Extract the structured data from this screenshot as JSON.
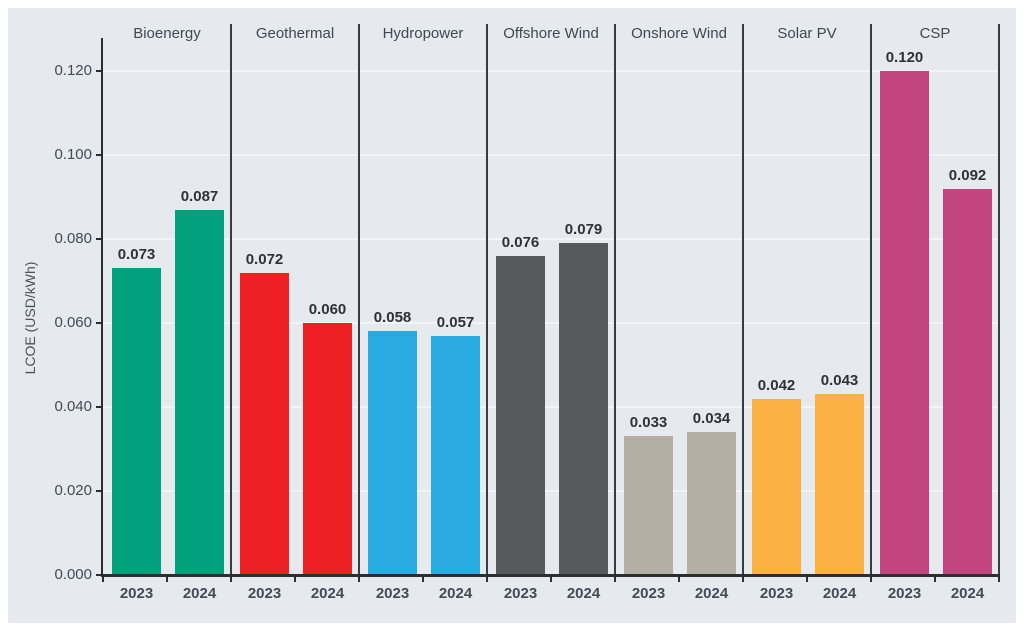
{
  "chart_data": {
    "type": "bar",
    "title": "",
    "ylabel": "LCOE (USD/kWh)",
    "xlabel": "",
    "categories": [
      "Bioenergy",
      "Geothermal",
      "Hydropower",
      "Offshore Wind",
      "Onshore Wind",
      "Solar PV",
      "CSP"
    ],
    "series": [
      {
        "name": "2023",
        "values": [
          0.073,
          0.072,
          0.058,
          0.076,
          0.033,
          0.042,
          0.12
        ]
      },
      {
        "name": "2024",
        "values": [
          0.087,
          0.06,
          0.057,
          0.079,
          0.034,
          0.043,
          0.092
        ]
      }
    ],
    "category_colors": [
      "#00a17c",
      "#ee2024",
      "#29abe2",
      "#58595b",
      "#b4afa2",
      "#fab042",
      "#c2457f"
    ],
    "yticks": [
      0.0,
      0.02,
      0.04,
      0.06,
      0.08,
      0.1,
      0.12
    ],
    "ytick_labels": [
      "0.000",
      "0.020",
      "0.040",
      "0.060",
      "0.080",
      "0.100",
      "0.120"
    ],
    "ylim": [
      0,
      0.128
    ],
    "grid": true,
    "legend": "none",
    "value_label_decimals": 3
  },
  "colors": {
    "figure_background": "#ffffff",
    "plot_background": "#e6e9ed",
    "gridline": "#f2f5f7",
    "axis_line": "#2b2d2f",
    "panel_divider": "#3a3d40",
    "tick_text": "#414b58",
    "value_label_text": "#2d3138"
  }
}
